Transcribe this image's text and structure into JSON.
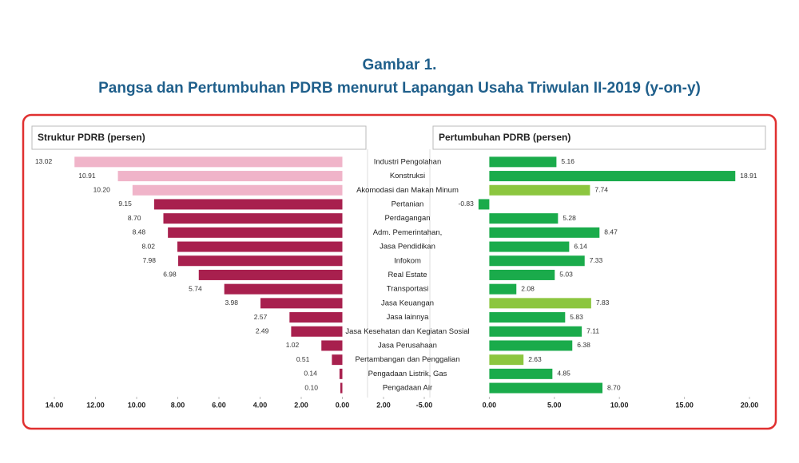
{
  "title": "Gambar 1.",
  "subtitle": "Pangsa dan Pertumbuhan PDRB menurut Lapangan Usaha Triwulan II-2019 (y-on-y)",
  "chart_data": [
    {
      "type": "bar",
      "orientation": "horizontal",
      "title": "Struktur PDRB (persen)",
      "categories": [
        "Industri Pengolahan",
        "Konstruksi",
        "Akomodasi dan Makan Minum",
        "Pertanian",
        "Perdagangan",
        "Adm. Pemerintahan,",
        "Jasa Pendidikan",
        "Infokom",
        "Real Estate",
        "Transportasi",
        "Jasa Keuangan",
        "Jasa lainnya",
        "Jasa Kesehatan dan Kegiatan Sosial",
        "Jasa Perusahaan",
        "Pertambangan dan Penggalian",
        "Pengadaan Listrik, Gas",
        "Pengadaan Air"
      ],
      "values": [
        13.02,
        10.91,
        10.2,
        9.15,
        8.7,
        8.48,
        8.02,
        7.98,
        6.98,
        5.74,
        3.98,
        2.57,
        2.49,
        1.02,
        0.51,
        0.14,
        0.1
      ],
      "value_labels": [
        "13.02",
        "10.91",
        "10.20",
        "9.15",
        "8.70",
        "8.48",
        "8.02",
        "7.98",
        "6.98",
        "5.74",
        "3.98",
        "2.57",
        "2.49",
        "1.02",
        "0.51",
        "0.14",
        "0.10"
      ],
      "colors": [
        "#f0b4c9",
        "#f0b4c9",
        "#f0b4c9",
        "#a8204e",
        "#a8204e",
        "#a8204e",
        "#a8204e",
        "#a8204e",
        "#a8204e",
        "#a8204e",
        "#a8204e",
        "#a8204e",
        "#a8204e",
        "#a8204e",
        "#a8204e",
        "#a8204e",
        "#a8204e"
      ],
      "xlim": [
        14,
        -2
      ],
      "xticks": [
        {
          "value": 14,
          "label": "14.00"
        },
        {
          "value": 12,
          "label": "12.00"
        },
        {
          "value": 10,
          "label": "10.00"
        },
        {
          "value": 8,
          "label": "8.00"
        },
        {
          "value": 6,
          "label": "6.00"
        },
        {
          "value": 4,
          "label": "4.00"
        },
        {
          "value": 2,
          "label": "2.00"
        },
        {
          "value": 0,
          "label": "0.00"
        },
        {
          "value": -2,
          "label": "2.00"
        }
      ]
    },
    {
      "type": "bar",
      "orientation": "horizontal",
      "title": "Pertumbuhan PDRB (persen)",
      "values": [
        5.16,
        18.91,
        7.74,
        -0.83,
        5.28,
        8.47,
        6.14,
        7.33,
        5.03,
        2.08,
        7.83,
        5.83,
        7.11,
        6.38,
        2.63,
        4.85,
        8.7
      ],
      "value_labels": [
        "5.16",
        "18.91",
        "7.74",
        "-0.83",
        "5.28",
        "8.47",
        "6.14",
        "7.33",
        "5.03",
        "2.08",
        "7.83",
        "5.83",
        "7.11",
        "6.38",
        "2.63",
        "4.85",
        "8.70"
      ],
      "colors": [
        "#1aab4b",
        "#1aab4b",
        "#8cc63f",
        "#1aab4b",
        "#1aab4b",
        "#1aab4b",
        "#1aab4b",
        "#1aab4b",
        "#1aab4b",
        "#1aab4b",
        "#8cc63f",
        "#1aab4b",
        "#1aab4b",
        "#1aab4b",
        "#8cc63f",
        "#1aab4b",
        "#1aab4b"
      ],
      "xlim": [
        -5,
        20
      ],
      "xticks": [
        {
          "value": -5,
          "label": "-5.00"
        },
        {
          "value": 0,
          "label": "0.00"
        },
        {
          "value": 5,
          "label": "5.00"
        },
        {
          "value": 10,
          "label": "10.00"
        },
        {
          "value": 15,
          "label": "15.00"
        },
        {
          "value": 20,
          "label": "20.00"
        }
      ]
    }
  ]
}
